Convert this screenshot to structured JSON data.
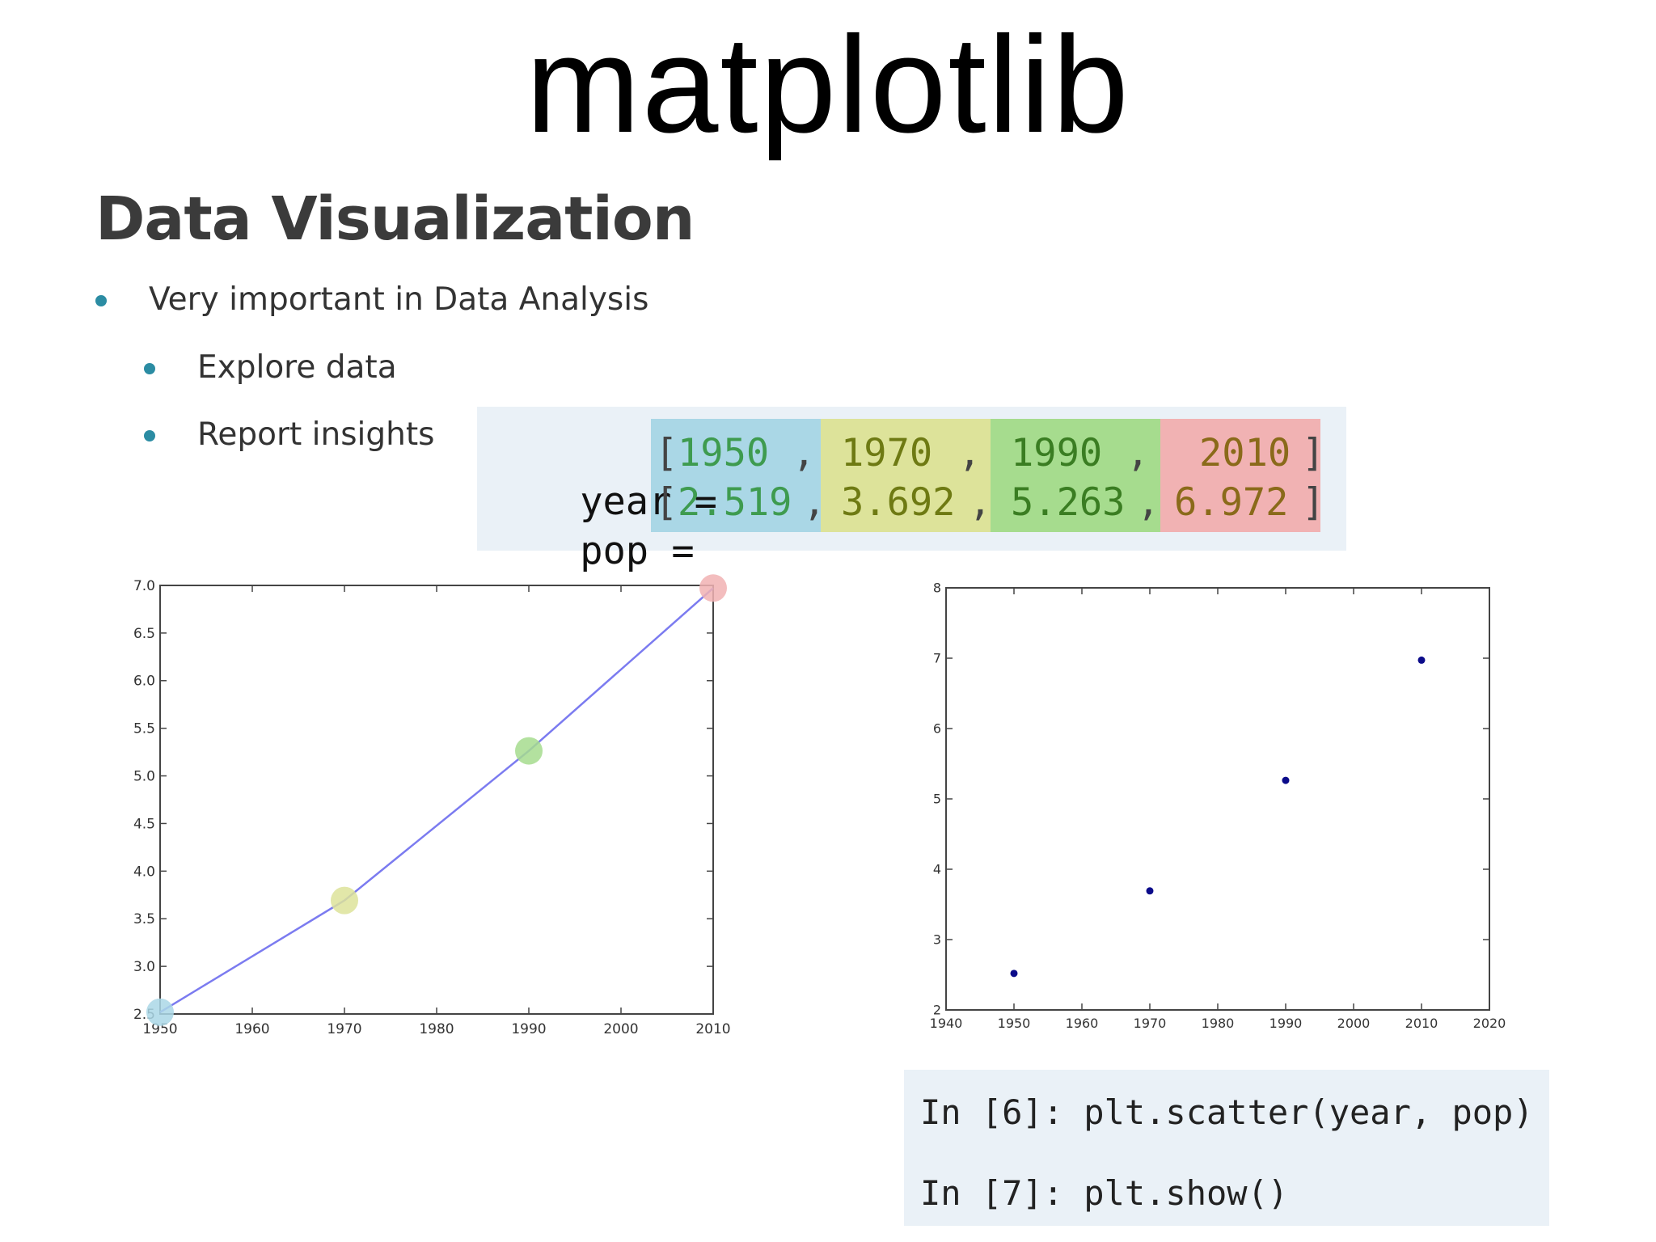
{
  "slide_title": "matplotlib",
  "section_heading": "Data Visualization",
  "bullets": [
    "Very important in Data Analysis",
    "Explore data",
    "Report insights"
  ],
  "code": {
    "year_label": "year =",
    "pop_label": "pop =",
    "year_values": [
      "1950",
      "1970",
      "1990",
      "2010"
    ],
    "pop_values": [
      "2.519",
      "3.692",
      "5.263",
      "6.972"
    ],
    "column_colors": [
      "#aad7e6",
      "#dde39a",
      "#a6dc8e",
      "#f1b2b3"
    ]
  },
  "ipython": {
    "line1": "In [6]: plt.scatter(year, pop)",
    "line2": "In [7]: plt.show()"
  },
  "chart_data": [
    {
      "type": "line",
      "x": [
        1950,
        1970,
        1990,
        2010
      ],
      "y": [
        2.519,
        3.692,
        5.263,
        6.972
      ],
      "xlim": [
        1950,
        2010
      ],
      "ylim": [
        2.5,
        7.0
      ],
      "xticks": [
        "1950",
        "1960",
        "1970",
        "1980",
        "1990",
        "2000",
        "2010"
      ],
      "yticks": [
        "2.5",
        "3.0",
        "3.5",
        "4.0",
        "4.5",
        "5.0",
        "5.5",
        "6.0",
        "6.5",
        "7.0"
      ],
      "line_color": "#7b7bf0",
      "highlight_colors": [
        "#aad7e6",
        "#dde39a",
        "#a6dc8e",
        "#f1b2b3"
      ],
      "grid": false
    },
    {
      "type": "scatter",
      "x": [
        1950,
        1970,
        1990,
        2010
      ],
      "y": [
        2.519,
        3.692,
        5.263,
        6.972
      ],
      "xlim": [
        1940,
        2020
      ],
      "ylim": [
        2,
        8
      ],
      "xticks": [
        "1940",
        "1950",
        "1960",
        "1970",
        "1980",
        "1990",
        "2000",
        "2010",
        "2020"
      ],
      "yticks": [
        "2",
        "3",
        "4",
        "5",
        "6",
        "7",
        "8"
      ],
      "marker_color": "#0b0b8a",
      "grid": false
    }
  ]
}
